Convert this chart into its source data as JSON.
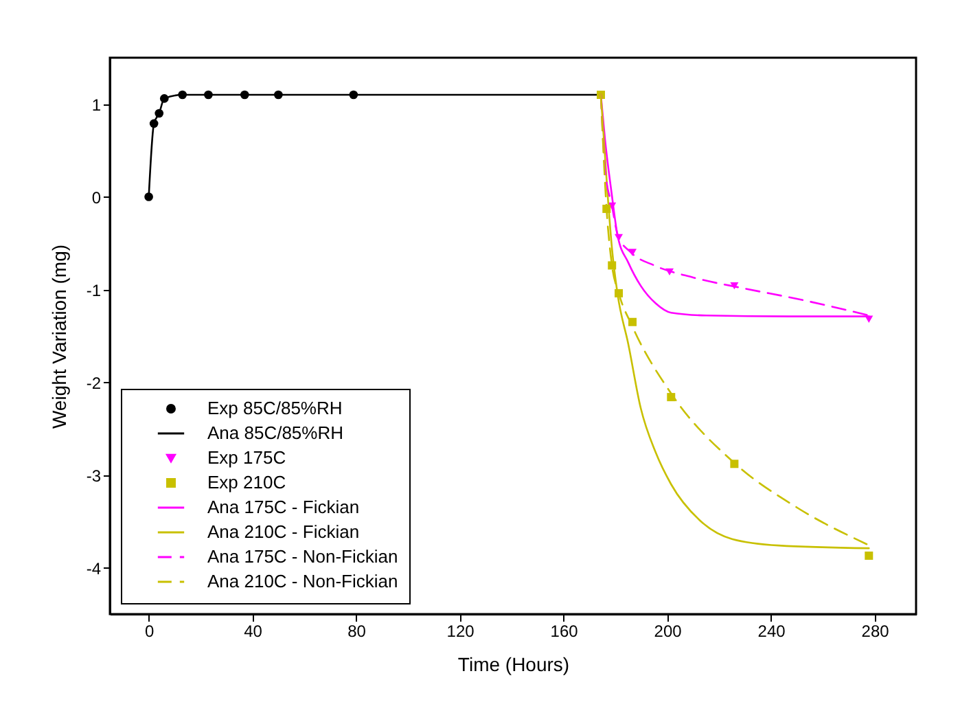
{
  "chart_data": {
    "type": "scatter",
    "xlabel": "Time (Hours)",
    "ylabel": "Weight Variation (mg)",
    "xlim": [
      -15,
      296
    ],
    "ylim": [
      -4.5,
      1.5
    ],
    "xticks": [
      0,
      40,
      80,
      120,
      160,
      200,
      240,
      280
    ],
    "yticks": [
      -4,
      -3,
      -2,
      -1,
      0,
      1
    ],
    "grid": false,
    "legend": "bottom left",
    "series": [
      {
        "name": "Exp 85C/85%RH",
        "marker": "circle",
        "color": "#000000",
        "x": [
          0,
          2,
          4,
          6,
          13,
          23,
          37,
          50,
          79
        ],
        "values": [
          0,
          0.79,
          0.9,
          1.06,
          1.1,
          1.1,
          1.1,
          1.1,
          1.1
        ]
      },
      {
        "name": "Ana 85C/85%RH",
        "type": "line",
        "line_style": "solid",
        "color": "#000000",
        "x": [
          0,
          2,
          4,
          6,
          13,
          23,
          37,
          50,
          79,
          174.4
        ],
        "values": [
          0,
          0.79,
          0.9,
          1.06,
          1.1,
          1.1,
          1.1,
          1.1,
          1.1,
          1.1
        ]
      },
      {
        "name": "Exp 175C",
        "marker": "triangle",
        "color": "#ff00ff",
        "x": [
          178.7,
          181.3,
          186.6,
          200.9,
          225.9,
          277.8
        ],
        "values": [
          -0.1,
          -0.44,
          -0.6,
          -0.81,
          -0.96,
          -1.32
        ]
      },
      {
        "name": "Exp 210C",
        "marker": "square",
        "color": "#c8c000",
        "x": [
          174.4,
          176.6,
          178.7,
          181.3,
          186.6,
          201.5,
          225.9,
          277.8
        ],
        "values": [
          1.1,
          -0.13,
          -0.74,
          -1.04,
          -1.35,
          -2.16,
          -2.88,
          -3.87
        ]
      },
      {
        "name": "Ana 175C - Fickian",
        "type": "line",
        "line_style": "solid",
        "color": "#ff00ff",
        "x": [
          174.4,
          176,
          178.5,
          180.8,
          185,
          189.8,
          195.6,
          201.5,
          215,
          247,
          277.8
        ],
        "values": [
          1.1,
          0.62,
          0.05,
          -0.41,
          -0.71,
          -0.96,
          -1.15,
          -1.25,
          -1.28,
          -1.29,
          -1.29
        ]
      },
      {
        "name": "Ana 210C - Fickian",
        "type": "line",
        "line_style": "solid",
        "color": "#c8c000",
        "x": [
          174.4,
          177,
          178.7,
          180.8,
          185,
          189.8,
          195.6,
          201.5,
          213,
          225,
          243,
          277.8
        ],
        "values": [
          1.1,
          0.03,
          -0.56,
          -1.04,
          -1.59,
          -2.28,
          -2.76,
          -3.1,
          -3.5,
          -3.69,
          -3.76,
          -3.79
        ]
      },
      {
        "name": "Ana 175C - Non-Fickian",
        "type": "line",
        "line_style": "dashed",
        "color": "#ff00ff",
        "x": [
          174.4,
          176,
          178.7,
          181,
          186,
          195,
          210,
          230,
          250,
          278
        ],
        "values": [
          1.1,
          0.3,
          -0.1,
          -0.42,
          -0.6,
          -0.74,
          -0.87,
          -0.99,
          -1.1,
          -1.28
        ]
      },
      {
        "name": "Ana 210C - Non-Fickian",
        "type": "line",
        "line_style": "dashed",
        "color": "#c8c000",
        "x": [
          174.4,
          176.6,
          178.7,
          181.3,
          186.6,
          201.5,
          225.9,
          250,
          278
        ],
        "values": [
          1.1,
          -0.13,
          -0.74,
          -1.04,
          -1.4,
          -2.12,
          -2.87,
          -3.35,
          -3.76
        ]
      }
    ]
  }
}
